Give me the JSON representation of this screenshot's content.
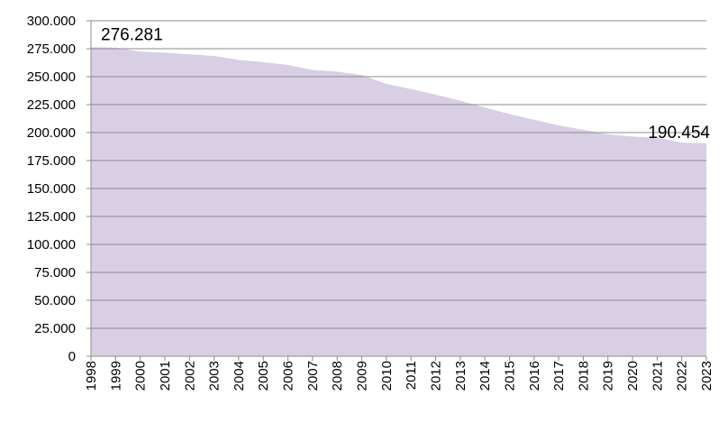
{
  "chart_data": {
    "type": "area",
    "title": "",
    "xlabel": "",
    "ylabel": "",
    "ylim": [
      0,
      300000
    ],
    "y_ticks": [
      0,
      25000,
      50000,
      75000,
      100000,
      125000,
      150000,
      175000,
      200000,
      225000,
      250000,
      275000,
      300000
    ],
    "y_tick_labels": [
      "0",
      "25.000",
      "50.000",
      "75.000",
      "100.000",
      "125.000",
      "150.000",
      "175.000",
      "200.000",
      "225.000",
      "250.000",
      "275.000",
      "300.000"
    ],
    "grid": true,
    "legend": "none",
    "fill_color": "#d9cfe4",
    "grid_color": "#8c8c8c",
    "x": [
      "1998",
      "1999",
      "2000",
      "2001",
      "2002",
      "2003",
      "2004",
      "2005",
      "2006",
      "2007",
      "2008",
      "2009",
      "2010",
      "2011",
      "2012",
      "2013",
      "2014",
      "2015",
      "2016",
      "2017",
      "2018",
      "2019",
      "2020",
      "2021",
      "2022",
      "2023"
    ],
    "series": [
      {
        "values": [
          276281,
          276000,
          272500,
          271500,
          270000,
          268500,
          265000,
          263000,
          260500,
          256000,
          254500,
          251500,
          243500,
          239000,
          234000,
          228500,
          222500,
          216500,
          211500,
          206500,
          202500,
          198500,
          196500,
          195500,
          191000,
          190454
        ]
      }
    ],
    "data_labels": [
      {
        "x": "1998",
        "text": "276.281"
      },
      {
        "x": "2023",
        "text": "190.454"
      }
    ]
  }
}
